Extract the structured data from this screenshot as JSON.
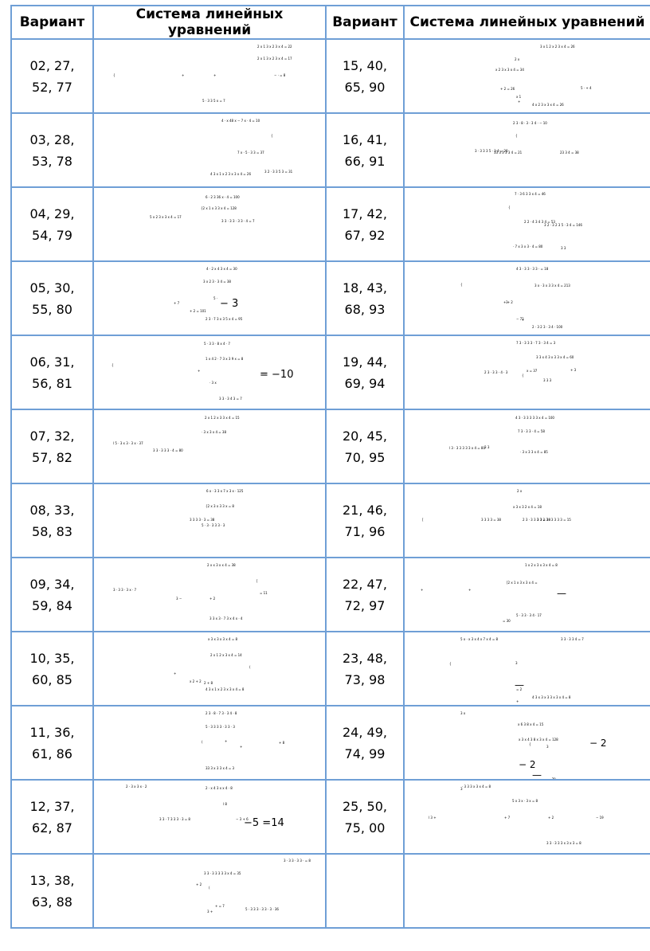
{
  "headers": {
    "col1": "Вариант",
    "col2": "Система линейных уравнений",
    "col3": "Вариант",
    "col4": "Система линейных уравнений"
  },
  "rows": [
    {
      "left": {
        "line1": "02, 27,",
        "line2": "52, 77",
        "eq": [
          {
            "t": "2 x 1 3 x 2 3 x 4 =  22",
            "k": "tiny"
          },
          {
            "t": "2 x 1 3 x 2 3 x 4 =  17",
            "k": "tiny"
          },
          {
            "t": "{",
            "k": "tiny"
          },
          {
            "t": "+",
            "k": "tiny"
          },
          {
            "t": "+",
            "k": "tiny"
          },
          {
            "t": "− · = 8",
            "k": "tiny"
          },
          {
            "t": "5 · 3 3 5 x  =  7",
            "k": "tiny"
          }
        ]
      },
      "right": {
        "line1": "15, 40,",
        "line2": "65, 90",
        "eq": [
          {
            "t": "3 x 1 2 x 2 3 x 4     =    26",
            "k": "tiny"
          },
          {
            "t": "2 x",
            "k": "tiny"
          },
          {
            "t": "x 2 3 x 3 x 4     =    34",
            "k": "tiny"
          },
          {
            "t": "5 ·     + 4",
            "k": "tiny"
          },
          {
            "t": "+",
            "k": "tiny"
          },
          {
            "t": "+ 2        =    26",
            "k": "tiny"
          },
          {
            "t": "x 1",
            "k": "tiny"
          },
          {
            "t": "4 x 2 3 x 3 x 4     =    26",
            "k": "tiny"
          }
        ]
      }
    },
    {
      "left": {
        "line1": "03, 28,",
        "line2": "53, 78",
        "eq": [
          {
            "t": "4 · x 48 x − 7 x · 4 = 10",
            "k": "tiny"
          },
          {
            "t": "{",
            "k": "tiny"
          },
          {
            "t": "7 x · 5 · 3 3 = 37",
            "k": "tiny"
          },
          {
            "t": "3 2 · 3 3 5 3 = 31",
            "k": "tiny"
          },
          {
            "t": "4 3 x 1 x 2 3 x 3 x 4 =  26",
            "k": "tiny"
          }
        ]
      },
      "right": {
        "line1": "16, 41,",
        "line2": "66, 91",
        "eq": [
          {
            "t": "2 3 · 8 · 3 · 3 4 · − 10",
            "k": "tiny"
          },
          {
            "t": "{",
            "k": "tiny"
          },
          {
            "t": "3 · 3 3 3 5 · 3 4     =   28",
            "k": "tiny"
          },
          {
            "t": "23 3 4 = 38",
            "k": "tiny"
          },
          {
            "t": "33 3 3 3 3 4 = 21",
            "k": "tiny"
          }
        ]
      }
    },
    {
      "left": {
        "line1": "04, 29,",
        "line2": "54, 79",
        "eq": [
          {
            "t": "6 · 2 3 36 x · 4 = 100",
            "k": "tiny"
          },
          {
            "t": "{2 x 1 x 3 3 x 4 =  128",
            "k": "tiny"
          },
          {
            "t": "3 3 · 3 3 · 3 3 · 4 = 7",
            "k": "tiny"
          },
          {
            "t": "5 x 2 3 x 3 x 4 =  17",
            "k": "tiny"
          }
        ]
      },
      "right": {
        "line1": "17, 42,",
        "line2": "67, 92",
        "eq": [
          {
            "t": "7 · 3 6 3 3 x 4 = 46",
            "k": "tiny"
          },
          {
            "t": "{",
            "k": "tiny"
          },
          {
            "t": "2 2 · 4 3 4 3 4 = 53",
            "k": "tiny"
          },
          {
            "t": "3 2 · 3 2 3 5 · 3 4     =    146",
            "k": "tiny"
          },
          {
            "t": "3 3",
            "k": "tiny"
          },
          {
            "t": "· 7 x 3 x 3 · 4     =    80",
            "k": "tiny"
          }
        ]
      }
    },
    {
      "left": {
        "line1": "05, 30,",
        "line2": "55, 80",
        "eq": [
          {
            "t": "4 · 2 x 4 3 x 4 = 30",
            "k": "tiny"
          },
          {
            "t": "3 x 2 3 · 3 4 = 38",
            "k": "tiny"
          },
          {
            "t": "5 ·",
            "k": "tiny"
          },
          {
            "t": "− 3",
            "k": "big"
          },
          {
            "t": "+ 7",
            "k": "tiny"
          },
          {
            "t": "+ 2   =  101",
            "k": "tiny"
          },
          {
            "t": "2 3 · 7 3 x 3 5 x 4 = 95",
            "k": "tiny"
          }
        ]
      },
      "right": {
        "line1": "18, 43,",
        "line2": "68, 93",
        "eq": [
          {
            "t": "4 3 · 3 3 · 3 3 · = 18",
            "k": "tiny"
          },
          {
            "t": "3 x · 3 x 3 3 x 4 =     213",
            "k": "tiny"
          },
          {
            "t": "{",
            "k": "tiny"
          },
          {
            "t": "3",
            "k": "tiny"
          },
          {
            "t": "+  + 2",
            "k": "tiny"
          },
          {
            "t": "+",
            "k": "tiny"
          },
          {
            "t": "− 72",
            "k": "tiny"
          },
          {
            "t": "2 · 3 2 3 · 3 4 · 100",
            "k": "tiny"
          }
        ]
      }
    },
    {
      "left": {
        "line1": "06, 31,",
        "line2": "56, 81",
        "eq": [
          {
            "t": "5 · 3 3 · 8 x 4 · 7",
            "k": "tiny"
          },
          {
            "t": "1 x 4 2 · 7 3 x 3 9 x = 8",
            "k": "tiny"
          },
          {
            "t": "{",
            "k": "tiny"
          },
          {
            "t": "+",
            "k": "tiny"
          },
          {
            "t": "· 3   x",
            "k": "tiny"
          },
          {
            "t": "= −10",
            "k": "big"
          },
          {
            "t": "3 3 · 3 4 3 = 7",
            "k": "tiny"
          }
        ]
      },
      "right": {
        "line1": "19, 44,",
        "line2": "69, 94",
        "eq": [
          {
            "t": "7 3 · 3 3 3 · 7 3 · 3 4 = 3",
            "k": "tiny"
          },
          {
            "t": "3 3 x 4 3 x 3 3 x 4 = 60",
            "k": "tiny"
          },
          {
            "t": "{",
            "k": "tiny"
          },
          {
            "t": "3     3 3",
            "k": "tiny"
          },
          {
            "t": "+ 3",
            "k": "tiny"
          },
          {
            "t": "x      =    37",
            "k": "tiny"
          },
          {
            "t": "2 3 · 3 3 · 4 · 3",
            "k": "tiny"
          }
        ]
      }
    },
    {
      "left": {
        "line1": "07, 32,",
        "line2": "57, 82",
        "eq": [
          {
            "t": "2 x 1 2 x 3 3 x 4 =  15",
            "k": "tiny"
          },
          {
            "t": "· 3 x 3 x 4 = 38",
            "k": "tiny"
          },
          {
            "t": "l 5 · 3 x 3 · 3 x ·  37",
            "k": "tiny"
          },
          {
            "t": "3 3 · 3 3 3 · 4 = 80",
            "k": "tiny"
          }
        ]
      },
      "right": {
        "line1": "20, 45,",
        "line2": "70, 95",
        "eq": [
          {
            "t": "4 3 · 3 3 3 3 3 x 4 = 100",
            "k": "tiny"
          },
          {
            "t": "7 3 · 3 3 · 4 = 58",
            "k": "tiny"
          },
          {
            "t": "l 3 · 3 3 3 3 3 x 4 = 80",
            "k": "tiny"
          },
          {
            "t": "3 3",
            "k": "tiny"
          },
          {
            "t": "· 3 x 3 3 x 4     =    85",
            "k": "tiny"
          }
        ]
      }
    },
    {
      "left": {
        "line1": "08, 33,",
        "line2": "58, 83",
        "eq": [
          {
            "t": "6 x · 3 3 x 7 x 3 x ·  125",
            "k": "tiny"
          },
          {
            "t": "{2 x 3 x 3 3 x = 8",
            "k": "tiny"
          },
          {
            "t": "3 3 3 3 · 3 = 38",
            "k": "tiny"
          },
          {
            "t": "5 · 3 · 3 3 3 · 3",
            "k": "tiny"
          }
        ]
      },
      "right": {
        "line1": "21, 46,",
        "line2": "71, 96",
        "eq": [
          {
            "t": "2 x",
            "k": "tiny"
          },
          {
            "t": "x 3 x 3 2 x 4     =    18",
            "k": "tiny"
          },
          {
            "t": "[",
            "k": "tiny"
          },
          {
            "t": "3 3 3 3 = 38",
            "k": "tiny"
          },
          {
            "t": "2 3 · 3 3 3 3 = 38",
            "k": "tiny"
          },
          {
            "t": "3 3 2 3 · 3 3 3 3 = 15",
            "k": "tiny"
          }
        ]
      }
    },
    {
      "left": {
        "line1": "09, 34,",
        "line2": "59, 84",
        "eq": [
          {
            "t": "2 x x 3 x x 4 = 38",
            "k": "tiny"
          },
          {
            "t": "[",
            "k": "tiny"
          },
          {
            "t": "3 · 3 3 · 3 x · 7",
            "k": "tiny"
          },
          {
            "t": "3 −",
            "k": "tiny"
          },
          {
            "t": "+ 2",
            "k": "tiny"
          },
          {
            "t": "= 11",
            "k": "tiny"
          },
          {
            "t": "3 3 x 3 · 7 3 x 4 x · 4",
            "k": "tiny"
          }
        ]
      },
      "right": {
        "line1": "22, 47,",
        "line2": "72, 97",
        "eq": [
          {
            "t": "1 x 2 x 3 x 3 x 4 = 8",
            "k": "tiny"
          },
          {
            "t": "[2 x 1 x 3 x 3 x 4 =",
            "k": "tiny"
          },
          {
            "t": "+",
            "k": "tiny"
          },
          {
            "t": "+",
            "k": "tiny"
          },
          {
            "t": "—",
            "k": "mid"
          },
          {
            "t": "= 30",
            "k": "tiny"
          },
          {
            "t": "5 · 3 3 · 3 4 · 17",
            "k": "tiny"
          }
        ]
      }
    },
    {
      "left": {
        "line1": "10, 35,",
        "line2": "60, 85",
        "eq": [
          {
            "t": "x 3 x 3 x 3 x 4 = 8",
            "k": "tiny"
          },
          {
            "t": "2 x 1 2 x 3 x 4 =  14",
            "k": "tiny"
          },
          {
            "t": "(",
            "k": "tiny"
          },
          {
            "t": "2 + 8",
            "k": "tiny"
          },
          {
            "t": "+",
            "k": "tiny"
          },
          {
            "t": "x 2   + 2",
            "k": "tiny"
          },
          {
            "t": "4 3 x 1 x 2 3 x 3 x 4 = 8",
            "k": "tiny"
          }
        ]
      },
      "right": {
        "line1": "23, 48,",
        "line2": "73, 98",
        "eq": [
          {
            "t": "5 x · x 3 x 4 x 7 x 4 = 8",
            "k": "tiny"
          },
          {
            "t": "3 3 · 3 3 4 = 7",
            "k": "tiny"
          },
          {
            "t": "{",
            "k": "tiny"
          },
          {
            "t": "3",
            "k": "tiny"
          },
          {
            "t": "—",
            "k": "mid"
          },
          {
            "t": "+",
            "k": "tiny"
          },
          {
            "t": "= 2",
            "k": "tiny"
          },
          {
            "t": "4 3 x 3 x 3 3 x 3 x 4 = 8",
            "k": "tiny"
          }
        ]
      }
    },
    {
      "left": {
        "line1": "11, 36,",
        "line2": "61, 86",
        "eq": [
          {
            "t": "2 3 · 8 · 7 3 · 3 4 · 8",
            "k": "tiny"
          },
          {
            "t": "5 · 3 3 3 3 · 3 3 · 3",
            "k": "tiny"
          },
          {
            "t": "(",
            "k": "tiny"
          },
          {
            "t": "+",
            "k": "tiny"
          },
          {
            "t": "+",
            "k": "tiny"
          },
          {
            "t": "+ 8",
            "k": "tiny"
          },
          {
            "t": "33 3 x 3 3 x 4 = 3",
            "k": "tiny"
          }
        ]
      },
      "right": {
        "line1": "24, 49,",
        "line2": "74, 99",
        "eq": [
          {
            "t": "3 x",
            "k": "tiny"
          },
          {
            "t": "x 6 3 8 x 4     =    15",
            "k": "tiny"
          },
          {
            "t": "x 3 x 4 3 8 x 3 x 4     =    128",
            "k": "tiny"
          },
          {
            "t": "{",
            "k": "tiny"
          },
          {
            "t": "3",
            "k": "tiny"
          },
          {
            "t": "− 2",
            "k": "mid"
          },
          {
            "t": "− 2",
            "k": "mid"
          },
          {
            "t": "—",
            "k": "mid"
          },
          {
            "t": "=    79",
            "k": "tiny"
          },
          {
            "t": "5 · 3 3 2 3 x 4     =    15",
            "k": "tiny"
          }
        ]
      }
    },
    {
      "left": {
        "line1": "12, 37,",
        "line2": "62, 87",
        "eq": [
          {
            "t": "2 · x 4 3 x x 4 ·  8",
            "k": "tiny"
          },
          {
            "t": "2 · 3 x 3 x · 2",
            "k": "tiny"
          },
          {
            "t": "l 8",
            "k": "tiny"
          },
          {
            "t": "− 3   + 6",
            "k": "tiny"
          },
          {
            "t": "−5   =14",
            "k": "big"
          },
          {
            "t": "3 3 · 7 3 3 3 · 3 = 8",
            "k": "tiny"
          }
        ]
      },
      "right": {
        "line1": "25, 50,",
        "line2": "75, 00",
        "eq": [
          {
            "t": "3",
            "k": "tiny"
          },
          {
            "t": "· 3 3 3 x 3 x 4     =    8",
            "k": "tiny"
          },
          {
            "t": "5 x 3 x · 3 x = 8",
            "k": "tiny"
          },
          {
            "t": "l 3  +",
            "k": "tiny"
          },
          {
            "t": "+ 7",
            "k": "tiny"
          },
          {
            "t": "+ 2",
            "k": "tiny"
          },
          {
            "t": "− 19",
            "k": "tiny"
          },
          {
            "t": "3 3 · 3 3 3 x 3 x 3 = 8",
            "k": "tiny"
          }
        ]
      }
    },
    {
      "left": {
        "line1": "13, 38,",
        "line2": "63, 88",
        "eq": [
          {
            "t": "3 · 3 3 · 3 3 · = 8",
            "k": "tiny"
          },
          {
            "t": "3 3 · 3 3 3 3 3 x 4 = 35",
            "k": "tiny"
          },
          {
            "t": "(",
            "k": "tiny"
          },
          {
            "t": "3 +",
            "k": "tiny"
          },
          {
            "t": "+ 2",
            "k": "tiny"
          },
          {
            "t": "+   =  7",
            "k": "tiny"
          },
          {
            "t": "5 · 3 3 3 · 3 3 · 3 · 36",
            "k": "tiny"
          }
        ]
      },
      "right": {
        "line1": "",
        "line2": "",
        "eq": []
      }
    }
  ]
}
